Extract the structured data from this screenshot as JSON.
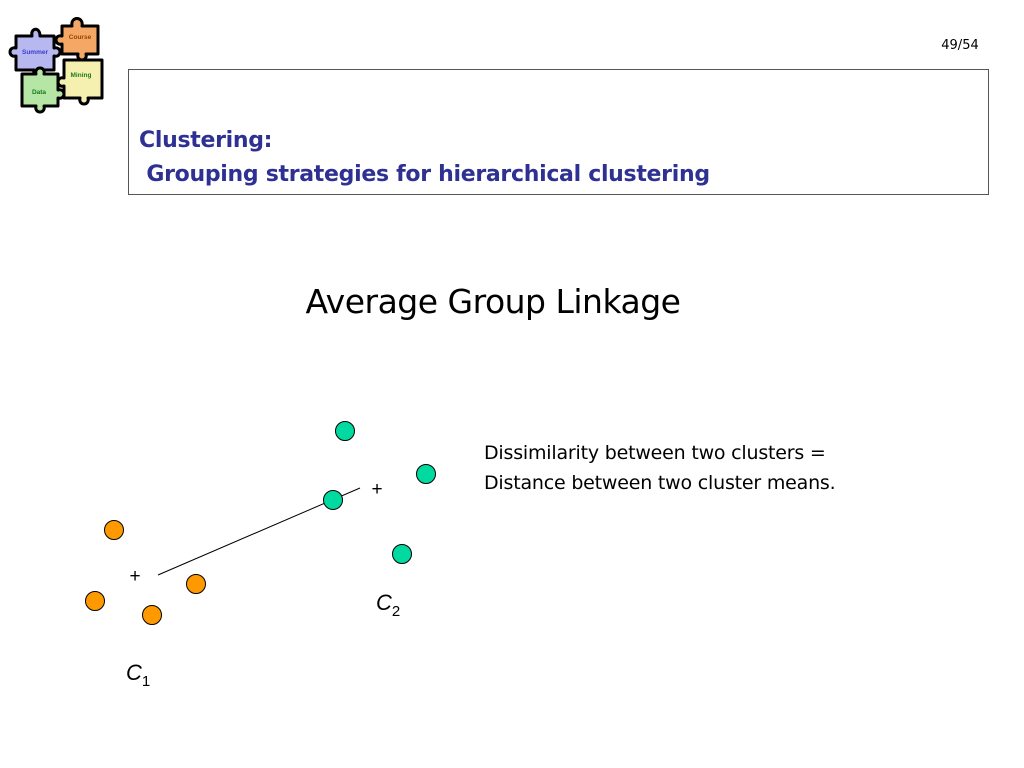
{
  "header": {
    "page_number": "49/54",
    "logo": {
      "name": "puzzle-pieces-logo",
      "pieces": [
        {
          "label": "Summer",
          "color": "#b8b8f0"
        },
        {
          "label": "Course",
          "color": "#f5a866"
        },
        {
          "label": "Mining",
          "color": "#f5f0b0"
        },
        {
          "label": "Data",
          "color": "#b6e6a6"
        }
      ]
    },
    "title_line1": "Clustering:",
    "title_line2": " Grouping strategies for hierarchical clustering",
    "title_color": "#2e3192"
  },
  "main": {
    "heading": "Average Group Linkage",
    "description": {
      "line1": "Dissimilarity between two clusters =",
      "line2": "Distance between two cluster means."
    }
  },
  "diagram": {
    "cluster1": {
      "label": "C",
      "subscript": "1",
      "color": "#ff9900",
      "mean_marker": "+"
    },
    "cluster2": {
      "label": "C",
      "subscript": "2",
      "color": "#00d9a0",
      "mean_marker": "+"
    }
  }
}
